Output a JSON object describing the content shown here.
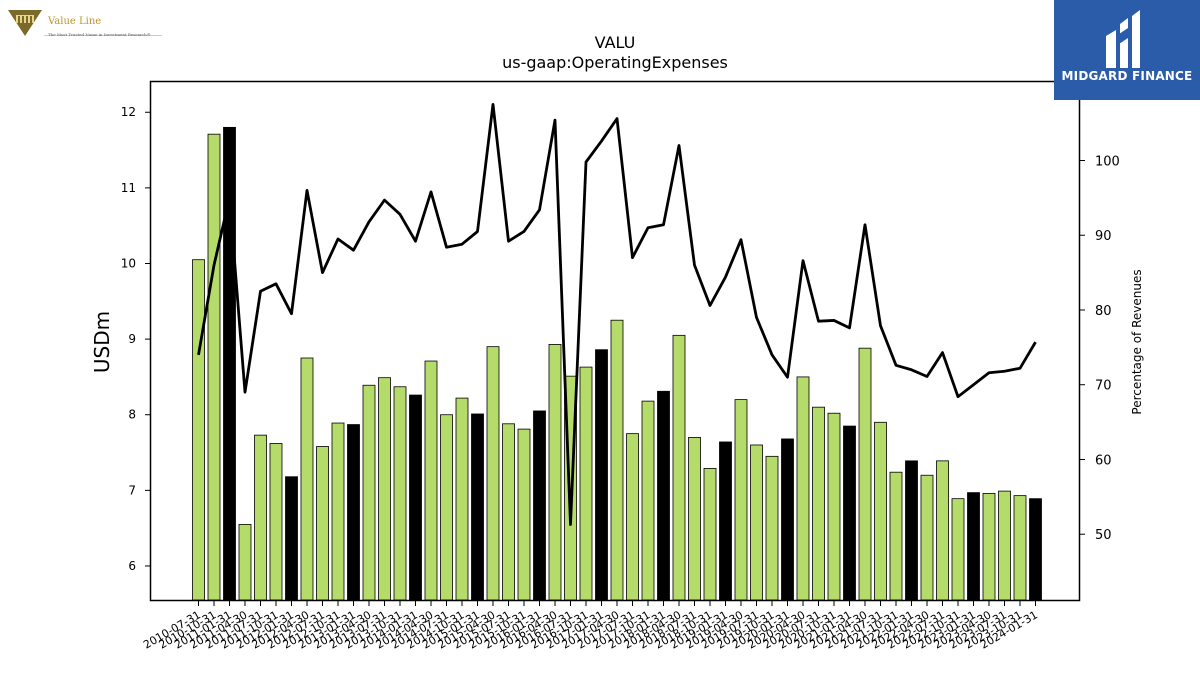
{
  "watermark_logos": {
    "value_line": {
      "name": "Value Line",
      "tagline": "The Most Trusted Name in Investment Research®"
    },
    "midgard": {
      "name": "MIDGARD FINANCE"
    }
  },
  "chart_data": {
    "type": "bar",
    "title": "VALU",
    "subtitle": "us-gaap:OperatingExpenses",
    "ylabel": "USDm",
    "y2label": "Percentage of Revenues",
    "ylim": [
      5.55,
      12.4
    ],
    "y2lim": [
      41.2,
      110.5
    ],
    "yticks": [
      6,
      7,
      8,
      9,
      10,
      11,
      12
    ],
    "y2ticks": [
      50,
      60,
      70,
      80,
      90,
      100
    ],
    "colors": {
      "bar_primary": "#b5dc6b",
      "bar_annual": "#000000",
      "line": "#000000"
    },
    "categories": [
      "2010-07-31",
      "2010-10-31",
      "2011-01-31",
      "2011-04-30",
      "2011-07-31",
      "2011-10-31",
      "2012-01-31",
      "2012-04-30",
      "2012-07-31",
      "2012-10-31",
      "2013-01-31",
      "2013-04-30",
      "2013-07-31",
      "2013-10-31",
      "2014-01-31",
      "2014-04-30",
      "2014-07-31",
      "2014-10-31",
      "2015-01-31",
      "2015-04-30",
      "2015-07-31",
      "2015-10-31",
      "2016-01-31",
      "2016-04-30",
      "2016-07-31",
      "2016-10-31",
      "2017-01-31",
      "2017-04-30",
      "2017-07-31",
      "2017-10-31",
      "2018-01-31",
      "2018-04-30",
      "2018-07-31",
      "2018-10-31",
      "2019-01-31",
      "2019-04-30",
      "2019-07-31",
      "2019-10-31",
      "2020-01-31",
      "2020-04-30",
      "2020-07-31",
      "2020-10-31",
      "2021-01-31",
      "2021-04-30",
      "2021-07-31",
      "2021-10-31",
      "2022-01-31",
      "2022-04-30",
      "2022-07-31",
      "2022-10-31",
      "2023-01-31",
      "2023-04-30",
      "2023-07-31",
      "2023-10-31",
      "2024-01-31"
    ],
    "series": [
      {
        "values": [
          10.05,
          11.71,
          11.8,
          6.55,
          7.73,
          7.62,
          7.18,
          8.75,
          7.58,
          7.89,
          7.87,
          8.39,
          8.49,
          8.37,
          8.26,
          8.71,
          8.0,
          8.22,
          8.01,
          8.9,
          7.88,
          7.81,
          8.05,
          8.93,
          8.51,
          8.63,
          8.86,
          9.25,
          7.75,
          8.18,
          8.31,
          9.05,
          7.7,
          7.29,
          7.64,
          8.2,
          7.6,
          7.45,
          7.68,
          8.5,
          8.1,
          8.02,
          7.85,
          8.88,
          7.9,
          7.24,
          7.39,
          7.2,
          7.39,
          6.89,
          6.97,
          6.96,
          6.99,
          6.93,
          6.89
        ],
        "annual_flags": [
          0,
          0,
          1,
          0,
          0,
          0,
          1,
          0,
          0,
          0,
          1,
          0,
          0,
          0,
          1,
          0,
          0,
          0,
          1,
          0,
          0,
          0,
          1,
          0,
          0,
          0,
          1,
          0,
          0,
          0,
          1,
          0,
          0,
          0,
          1,
          0,
          0,
          0,
          1,
          0,
          0,
          0,
          1,
          0,
          0,
          0,
          1,
          0,
          0,
          0,
          1,
          0,
          0,
          0,
          1
        ]
      },
      {
        "axis": "right",
        "type": "line",
        "values": [
          74,
          86,
          95,
          69,
          82.5,
          83.5,
          79.5,
          96,
          85,
          89.5,
          88,
          91.8,
          94.7,
          92.8,
          89.2,
          95.8,
          88.4,
          88.8,
          90.5,
          107.5,
          89.2,
          90.5,
          93.4,
          105.4,
          51.3,
          99.8,
          102.6,
          105.6,
          87,
          91,
          91.4,
          102,
          86,
          80.6,
          84.4,
          89.4,
          79,
          74,
          71,
          86.6,
          78.5,
          78.6,
          77.6,
          91.4,
          77.9,
          72.6,
          72,
          71.1,
          74.3,
          68.4,
          70,
          71.6,
          71.8,
          72.2,
          75.7
        ]
      }
    ]
  }
}
